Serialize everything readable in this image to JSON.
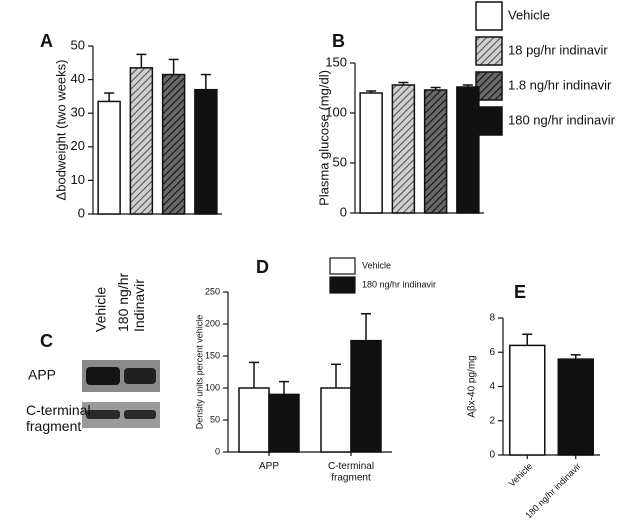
{
  "chart_data": [
    {
      "type": "bar",
      "panel": "A",
      "ylabel": "Δbodweight (two weeks)",
      "categories": [
        null,
        null,
        null,
        null
      ],
      "values": [
        33.5,
        43.5,
        41.5,
        37
      ],
      "errors": [
        2.5,
        4,
        4.5,
        4.5
      ],
      "ylim": [
        0,
        50
      ],
      "yticks": [
        0,
        10,
        20,
        30,
        40,
        50
      ]
    },
    {
      "type": "bar",
      "panel": "B",
      "ylabel": "Plasma glucose (mg/dl)",
      "categories": [
        null,
        null,
        null,
        null
      ],
      "values": [
        120,
        128,
        123,
        126
      ],
      "errors": [
        2,
        2.5,
        2.5,
        2
      ],
      "ylim": [
        0,
        150
      ],
      "yticks": [
        0,
        50,
        100,
        150
      ]
    },
    {
      "type": "bar",
      "panel": "D",
      "ylabel": "Density units percent vehicle",
      "categories": [
        "APP",
        "C-terminal fragment"
      ],
      "series": [
        {
          "name": "Vehicle",
          "color": "#ffffff",
          "values": [
            100,
            100
          ],
          "errors": [
            40,
            37
          ]
        },
        {
          "name": "180 ng/hr indinavir",
          "color": "#111111",
          "values": [
            90,
            174
          ],
          "errors": [
            20,
            42
          ]
        }
      ],
      "ylim": [
        0,
        250
      ],
      "yticks": [
        0,
        50,
        100,
        150,
        200,
        250
      ]
    },
    {
      "type": "bar",
      "panel": "E",
      "ylabel": "Aβx-40 pg/mg",
      "categories": [
        "Vehicle",
        "180 ng/hr indinavir"
      ],
      "values": [
        6.4,
        5.6
      ],
      "errors": [
        0.65,
        0.25
      ],
      "colors": [
        "#ffffff",
        "#111111"
      ],
      "ylim": [
        0,
        8
      ],
      "yticks": [
        0,
        2,
        4,
        6,
        8
      ]
    }
  ],
  "treatments": {
    "entries": [
      {
        "name": "Vehicle",
        "color": "#ffffff"
      },
      {
        "name": "18 pg/hr indinavir",
        "color": "#d0d0d0",
        "hatch": "#555555"
      },
      {
        "name": "1.8 ng/hr indinavir",
        "color": "#6a6a6a",
        "hatch": "#111111"
      },
      {
        "name": "180 ng/hr indinavir",
        "color": "#111111"
      }
    ]
  },
  "blot": {
    "panel": "C",
    "lanes": [
      "Vehicle",
      "180 ng/hr Indinavir"
    ],
    "rows": [
      "APP",
      "C-terminal fragment"
    ]
  }
}
